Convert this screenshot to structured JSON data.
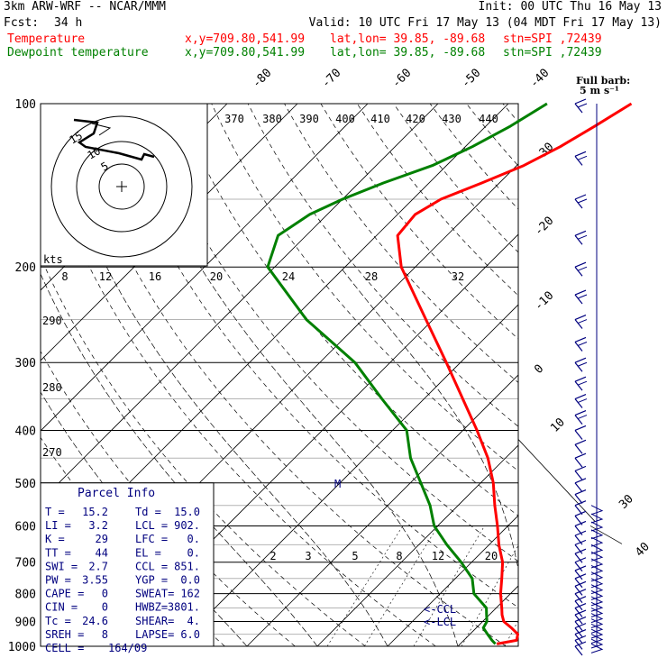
{
  "header": {
    "model": "3km ARW-WRF -- NCAR/MMM",
    "init": "Init: 00 UTC Thu 16 May 13",
    "fcst_label": "Fcst:",
    "fcst_hours": "34 h",
    "valid": "Valid: 10 UTC Fri 17 May 13 (04 MDT Fri 17 May 13)",
    "temp_label": "Temperature",
    "dew_label": "Dewpoint temperature",
    "xy": "x,y=709.80,541.99",
    "latlon": "lat,lon= 39.85, -89.68",
    "stn": "stn=SPI ,72439"
  },
  "colors": {
    "temperature": "#ff0000",
    "dewpoint": "#008000",
    "barb": "#00007f",
    "grid": "#000000",
    "light": "#b0b0b0"
  },
  "barb_legend": {
    "title": "Full barb:",
    "value": "5 m s⁻¹"
  },
  "hodograph": {
    "units": "kts",
    "ring_labels": [
      "15",
      "10",
      "5"
    ]
  },
  "pressure_ticks": [
    "100",
    "200",
    "300",
    "400",
    "500",
    "600",
    "700",
    "800",
    "900",
    "1000"
  ],
  "wetbulb_top_labels": [
    "-80",
    "-70",
    "-60",
    "-50",
    "-40"
  ],
  "theta_labels": [
    "370",
    "380",
    "390",
    "400",
    "410",
    "420",
    "430",
    "440"
  ],
  "mixing_labels_top": [
    "8",
    "12",
    "16",
    "20",
    "24",
    "28",
    "32"
  ],
  "right_temp_labels": [
    "-30",
    "-20",
    "-10",
    "0",
    "10"
  ],
  "left_theta_labels": [
    "290",
    "280",
    "270"
  ],
  "lower_right_labels": [
    "30",
    "40"
  ],
  "mixing_labels_bottom": [
    "2",
    "3",
    "5",
    "8",
    "12",
    "20"
  ],
  "markers": {
    "m": "M",
    "ccl": "<-CCL",
    "lcl": "<-LCL"
  },
  "parcel": {
    "title": "Parcel Info",
    "rows": [
      [
        "T  =",
        "15.2",
        "Td =",
        "15.0"
      ],
      [
        "LI =",
        "3.2",
        "LCL =",
        "902."
      ],
      [
        "K  =",
        "29",
        "LFC =",
        "0."
      ],
      [
        "TT =",
        "44",
        "EL =",
        "0."
      ],
      [
        "SWI =",
        "2.7",
        "CCL =",
        "851."
      ],
      [
        "PW =",
        "3.55",
        "YGP =",
        "0.0"
      ],
      [
        "CAPE =",
        "0",
        "SWEAT=",
        "162"
      ],
      [
        "CIN =",
        "0",
        "HWBZ=",
        "3801."
      ],
      [
        "Tc =",
        "24.6",
        "SHEAR=",
        "4."
      ],
      [
        "SREH =",
        "8",
        "LAPSE=",
        "6.0"
      ],
      [
        "CELL =",
        "164/09",
        "",
        ""
      ]
    ]
  },
  "chart_data": {
    "type": "line",
    "title": "",
    "xlabel": "",
    "ylabel": "",
    "y_axis": "pressure (hPa)",
    "ylim": [
      1000,
      100
    ],
    "series": [
      {
        "name": "Temperature",
        "color": "#ff0000",
        "points": [
          [
            990,
            15.2
          ],
          [
            975,
            17.5
          ],
          [
            950,
            16.8
          ],
          [
            925,
            15.0
          ],
          [
            900,
            13.0
          ],
          [
            875,
            11.8
          ],
          [
            850,
            10.8
          ],
          [
            800,
            8.6
          ],
          [
            750,
            6.6
          ],
          [
            700,
            4.4
          ],
          [
            650,
            1.4
          ],
          [
            600,
            -1.5
          ],
          [
            550,
            -4.8
          ],
          [
            500,
            -8.2
          ],
          [
            450,
            -12.5
          ],
          [
            400,
            -18.0
          ],
          [
            350,
            -24.5
          ],
          [
            300,
            -32.0
          ],
          [
            250,
            -41.0
          ],
          [
            200,
            -52.0
          ],
          [
            175,
            -57.0
          ],
          [
            160,
            -57.5
          ],
          [
            150,
            -56.0
          ],
          [
            140,
            -52.5
          ],
          [
            130,
            -49.0
          ],
          [
            120,
            -46.5
          ],
          [
            110,
            -44.5
          ],
          [
            100,
            -42.5
          ]
        ]
      },
      {
        "name": "Dewpoint temperature",
        "color": "#008000",
        "points": [
          [
            990,
            15.0
          ],
          [
            975,
            14.0
          ],
          [
            950,
            12.5
          ],
          [
            925,
            11.0
          ],
          [
            900,
            10.6
          ],
          [
            875,
            9.6
          ],
          [
            850,
            8.6
          ],
          [
            800,
            4.8
          ],
          [
            750,
            2.4
          ],
          [
            700,
            -1.5
          ],
          [
            650,
            -6.0
          ],
          [
            600,
            -10.5
          ],
          [
            550,
            -14.0
          ],
          [
            500,
            -18.5
          ],
          [
            450,
            -23.5
          ],
          [
            400,
            -28.0
          ],
          [
            350,
            -36.0
          ],
          [
            300,
            -45.0
          ],
          [
            250,
            -58.0
          ],
          [
            200,
            -71.0
          ],
          [
            175,
            -74.0
          ],
          [
            160,
            -72.5
          ],
          [
            150,
            -70.0
          ],
          [
            140,
            -66.5
          ],
          [
            130,
            -62.0
          ],
          [
            120,
            -59.0
          ],
          [
            110,
            -56.5
          ],
          [
            100,
            -54.5
          ]
        ]
      }
    ]
  }
}
